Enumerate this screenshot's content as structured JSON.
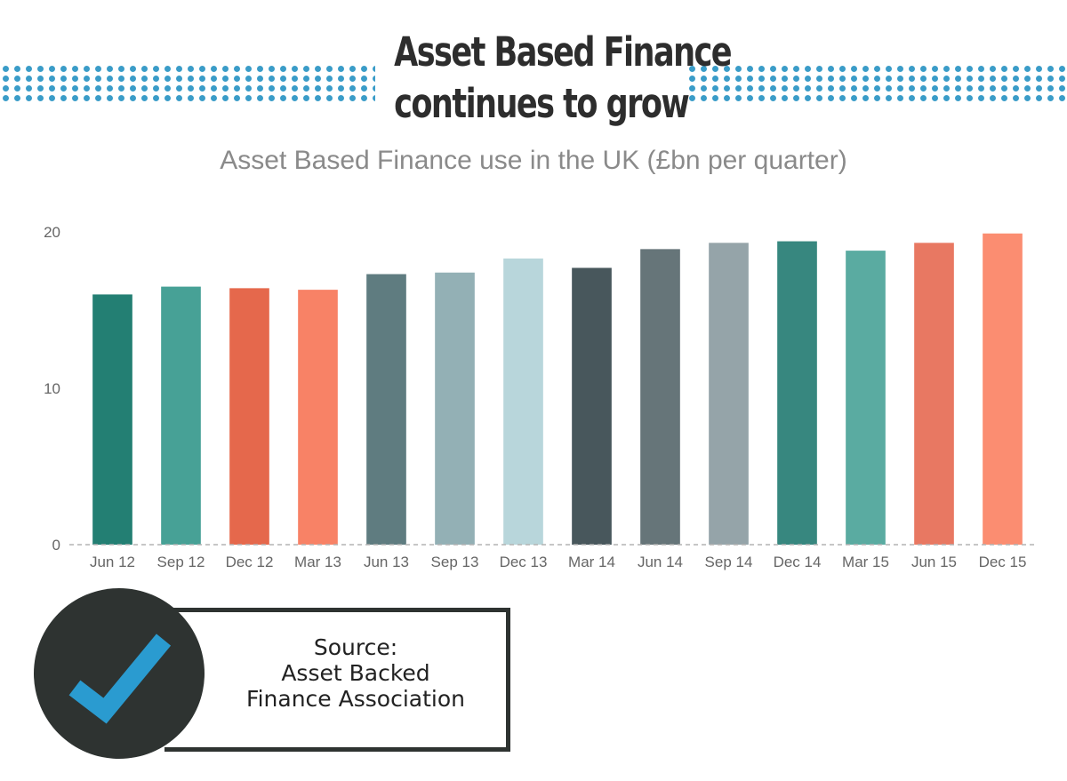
{
  "header": {
    "title_line1": "Asset Based Finance",
    "title_line2": "continues to grow",
    "subtitle": "Asset Based Finance use in the UK (£bn per quarter)"
  },
  "chart_data": {
    "type": "bar",
    "categories": [
      "Jun 12",
      "Sep 12",
      "Dec 12",
      "Mar 13",
      "Jun 13",
      "Sep 13",
      "Dec 13",
      "Mar 14",
      "Jun 14",
      "Sep 14",
      "Dec 14",
      "Mar 15",
      "Jun 15",
      "Dec 15"
    ],
    "values": [
      16.0,
      16.5,
      16.4,
      16.3,
      17.3,
      17.4,
      18.3,
      17.7,
      18.9,
      19.3,
      19.4,
      18.8,
      19.3,
      19.9
    ],
    "colors": [
      "#237f73",
      "#47a196",
      "#e5684c",
      "#f88266",
      "#5f7c80",
      "#93b0b5",
      "#b8d6db",
      "#48575c",
      "#667579",
      "#95a4a9",
      "#37877f",
      "#5aaba1",
      "#e87862",
      "#fb8d71"
    ],
    "title": "Asset Based Finance use in the UK (£bn per quarter)",
    "xlabel": "",
    "ylabel": "",
    "ylim": [
      0,
      20
    ],
    "yticks": [
      0,
      10,
      20
    ],
    "grid": false,
    "baseline_style": "dashed"
  },
  "source": {
    "line1": "Source:",
    "line2": "Asset Backed",
    "line3": "Finance Association"
  },
  "icons": {
    "badge": "checkmark-icon",
    "badge_circle_color": "#2e3331",
    "check_color": "#2a9bd0",
    "dots_color": "#3a9cc8"
  }
}
